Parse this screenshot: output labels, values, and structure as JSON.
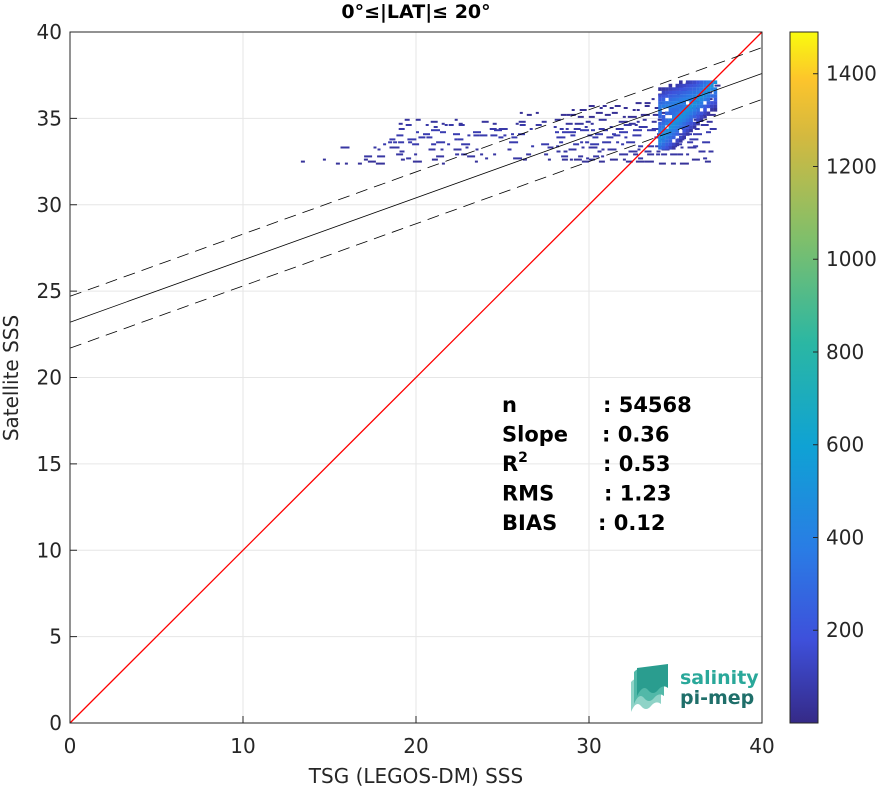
{
  "chart_data": {
    "type": "heatmap",
    "title": "0°≤|LAT|≤ 20°",
    "xlabel": "TSG (LEGOS-DM) SSS",
    "ylabel": "Satellite SSS",
    "xlim": [
      0,
      40
    ],
    "ylim": [
      0,
      40
    ],
    "xticks": [
      "0",
      "10",
      "20",
      "30",
      "40"
    ],
    "yticks": [
      "0",
      "5",
      "10",
      "15",
      "20",
      "25",
      "30",
      "35",
      "40"
    ],
    "grid": true,
    "colorbar": {
      "range": [
        0,
        1490
      ],
      "ticks": [
        "200",
        "400",
        "600",
        "800",
        "1000",
        "1200",
        "1400"
      ],
      "colormap": "parula"
    },
    "reference_line": {
      "x": [
        0,
        40
      ],
      "y": [
        0,
        40
      ],
      "color": "#ff0000"
    },
    "fit_line": {
      "intercept": 23.2,
      "slope": 0.36,
      "color": "#000000"
    },
    "fit_bounds": {
      "offset": 1.5,
      "color": "#000000",
      "style": "dashed"
    },
    "stats": [
      {
        "label": "n",
        "value": ": 54568"
      },
      {
        "label": "Slope",
        "value": ": 0.36"
      },
      {
        "label": "R",
        "sup": "2",
        "value": ": 0.53"
      },
      {
        "label": "RMS",
        "value": ": 1.23"
      },
      {
        "label": "BIAS",
        "value": ": 0.12"
      }
    ],
    "density_bands": [
      {
        "x": [
          13,
          37
        ],
        "y": 32.5,
        "count": 40
      },
      {
        "x": [
          17,
          37
        ],
        "y": 32.8,
        "count": 60
      },
      {
        "x": [
          15,
          37
        ],
        "y": 33.2,
        "count": 60
      },
      {
        "x": [
          17,
          37
        ],
        "y": 33.5,
        "count": 80
      },
      {
        "x": [
          18,
          37
        ],
        "y": 33.9,
        "count": 80
      },
      {
        "x": [
          20,
          37
        ],
        "y": 34.2,
        "count": 90
      },
      {
        "x": [
          19,
          37
        ],
        "y": 34.5,
        "count": 70
      },
      {
        "x": [
          19,
          37
        ],
        "y": 34.8,
        "count": 50
      },
      {
        "x": [
          26,
          37
        ],
        "y": 35.2,
        "count": 30
      },
      {
        "x": [
          29,
          37
        ],
        "y": 35.6,
        "count": 30
      },
      {
        "x": [
          32,
          37
        ],
        "y": 36.0,
        "count": 30
      },
      {
        "x": [
          34,
          37.3
        ],
        "y": 36.5,
        "count": 30
      },
      {
        "x": [
          35,
          37.3
        ],
        "y": 36.9,
        "count": 30
      }
    ],
    "density_peak": {
      "x": [
        34,
        37.3
      ],
      "y": [
        33.2,
        37.2
      ],
      "max_count": 500
    }
  },
  "logo": {
    "line1": "salinity",
    "line2": "pi-mep",
    "color": "#2aa89a"
  }
}
